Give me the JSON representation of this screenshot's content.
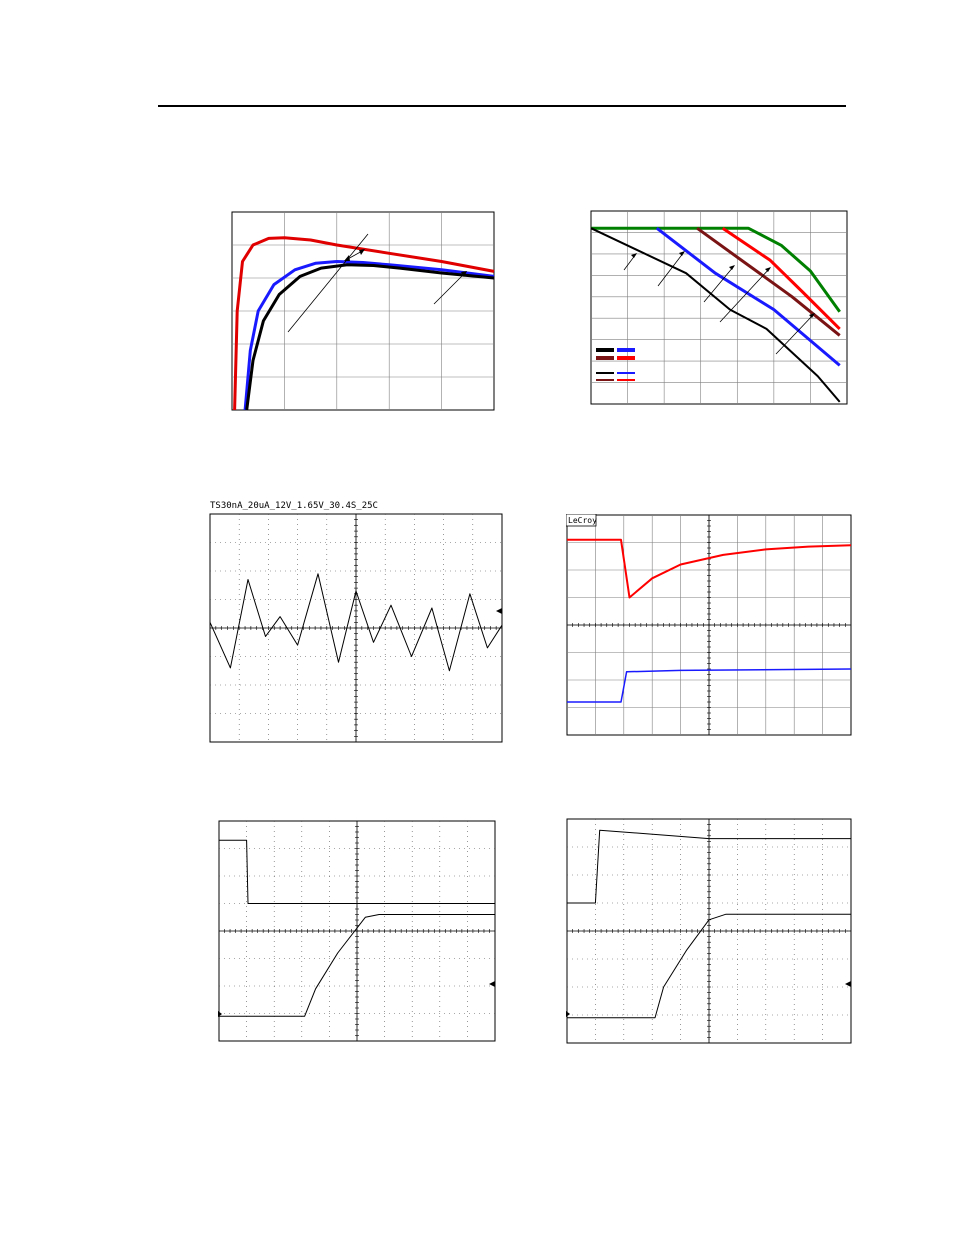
{
  "scope": {
    "header_text": "TS30nA_20uA_12V_1.65V_30.4S_25C",
    "vendor_label": "LeCroy"
  },
  "chart_data": [
    {
      "type": "line",
      "grid": true,
      "xlim": [
        0,
        5
      ],
      "ylim": [
        0,
        6
      ],
      "series": [
        {
          "color": "#e00000",
          "x": [
            0.05,
            0.1,
            0.2,
            0.4,
            0.7,
            1.0,
            1.5,
            2.0,
            3.0,
            4.0,
            5.0
          ],
          "y": [
            0.0,
            3.0,
            4.5,
            5.0,
            5.2,
            5.22,
            5.15,
            5.0,
            4.75,
            4.5,
            4.2
          ]
        },
        {
          "color": "#1a1aff",
          "x": [
            0.25,
            0.35,
            0.5,
            0.8,
            1.2,
            1.6,
            2.0,
            2.5,
            3.0,
            4.0,
            5.0
          ],
          "y": [
            0.0,
            1.8,
            3.0,
            3.8,
            4.25,
            4.45,
            4.5,
            4.47,
            4.4,
            4.25,
            4.05
          ]
        },
        {
          "color": "#000000",
          "x": [
            0.28,
            0.4,
            0.6,
            0.9,
            1.3,
            1.7,
            2.2,
            2.7,
            3.2,
            4.0,
            5.0
          ],
          "y": [
            0.0,
            1.5,
            2.7,
            3.5,
            4.05,
            4.3,
            4.4,
            4.38,
            4.3,
            4.15,
            4.0
          ]
        }
      ]
    },
    {
      "type": "line",
      "grid": true,
      "xlim": [
        0,
        7
      ],
      "ylim": [
        0,
        9
      ],
      "series": [
        {
          "color": "#008000",
          "x": [
            0,
            4.3,
            5.2,
            6.0,
            6.8
          ],
          "y": [
            8.2,
            8.2,
            7.4,
            6.2,
            4.3
          ]
        },
        {
          "color": "#ff0000",
          "x": [
            3.6,
            4.9,
            5.8,
            6.8
          ],
          "y": [
            8.2,
            6.7,
            5.2,
            3.5
          ]
        },
        {
          "color": "#7a1414",
          "x": [
            2.9,
            4.2,
            5.5,
            6.8
          ],
          "y": [
            8.2,
            6.6,
            5.0,
            3.2
          ]
        },
        {
          "color": "#1a1aff",
          "x": [
            1.8,
            3.4,
            5.0,
            6.8
          ],
          "y": [
            8.2,
            6.1,
            4.4,
            1.8
          ]
        },
        {
          "color": "#000000",
          "x": [
            0,
            2.6,
            3.8,
            4.8,
            6.2,
            6.8
          ],
          "y": [
            8.2,
            6.1,
            4.4,
            3.5,
            1.3,
            0.1
          ]
        }
      ]
    },
    {
      "type": "line",
      "grid": true,
      "xlim": [
        0,
        10
      ],
      "ylim": [
        -4,
        4
      ],
      "series": [
        {
          "color": "#000000",
          "x": [
            0.0,
            0.7,
            1.3,
            1.9,
            2.4,
            3.0,
            3.7,
            4.4,
            5.0,
            5.6,
            6.2,
            6.9,
            7.6,
            8.2,
            8.9,
            9.5,
            10.0
          ],
          "y": [
            0.2,
            -1.4,
            1.7,
            -0.3,
            0.4,
            -0.6,
            1.9,
            -1.2,
            1.3,
            -0.5,
            0.8,
            -1.0,
            0.7,
            -1.5,
            1.2,
            -0.7,
            0.1
          ]
        }
      ]
    },
    {
      "type": "line",
      "grid": true,
      "xlim": [
        0,
        10
      ],
      "ylim": [
        -4,
        4
      ],
      "series": [
        {
          "color": "#ff0000",
          "x": [
            0,
            1.9,
            2.2,
            3.0,
            4.0,
            5.5,
            7.0,
            8.5,
            10.0
          ],
          "y": [
            3.1,
            3.1,
            1.0,
            1.7,
            2.2,
            2.55,
            2.75,
            2.85,
            2.9
          ]
        },
        {
          "color": "#1a1aff",
          "x": [
            0,
            1.9,
            2.1,
            4.0,
            10.0
          ],
          "y": [
            -2.8,
            -2.8,
            -1.7,
            -1.65,
            -1.6
          ]
        }
      ]
    },
    {
      "type": "line",
      "grid": true,
      "xlim": [
        0,
        10
      ],
      "ylim": [
        -4,
        4
      ],
      "series": [
        {
          "color": "#000000",
          "x": [
            0,
            1.0,
            1.05,
            10.0
          ],
          "y": [
            3.3,
            3.3,
            1.0,
            1.0
          ]
        },
        {
          "color": "#000000",
          "x": [
            0,
            3.1,
            3.5,
            4.3,
            5.3,
            5.8,
            10.0
          ],
          "y": [
            -3.1,
            -3.1,
            -2.1,
            -0.8,
            0.5,
            0.6,
            0.6
          ]
        }
      ]
    },
    {
      "type": "line",
      "grid": true,
      "xlim": [
        0,
        10
      ],
      "ylim": [
        -4,
        4
      ],
      "series": [
        {
          "color": "#000000",
          "x": [
            0,
            1.0,
            1.15,
            5.0,
            10.0
          ],
          "y": [
            1.0,
            1.0,
            3.6,
            3.3,
            3.3
          ]
        },
        {
          "color": "#000000",
          "x": [
            0,
            3.1,
            3.4,
            4.2,
            5.0,
            5.6,
            10.0
          ],
          "y": [
            -3.1,
            -3.1,
            -2.0,
            -0.7,
            0.4,
            0.6,
            0.6
          ]
        }
      ]
    }
  ]
}
